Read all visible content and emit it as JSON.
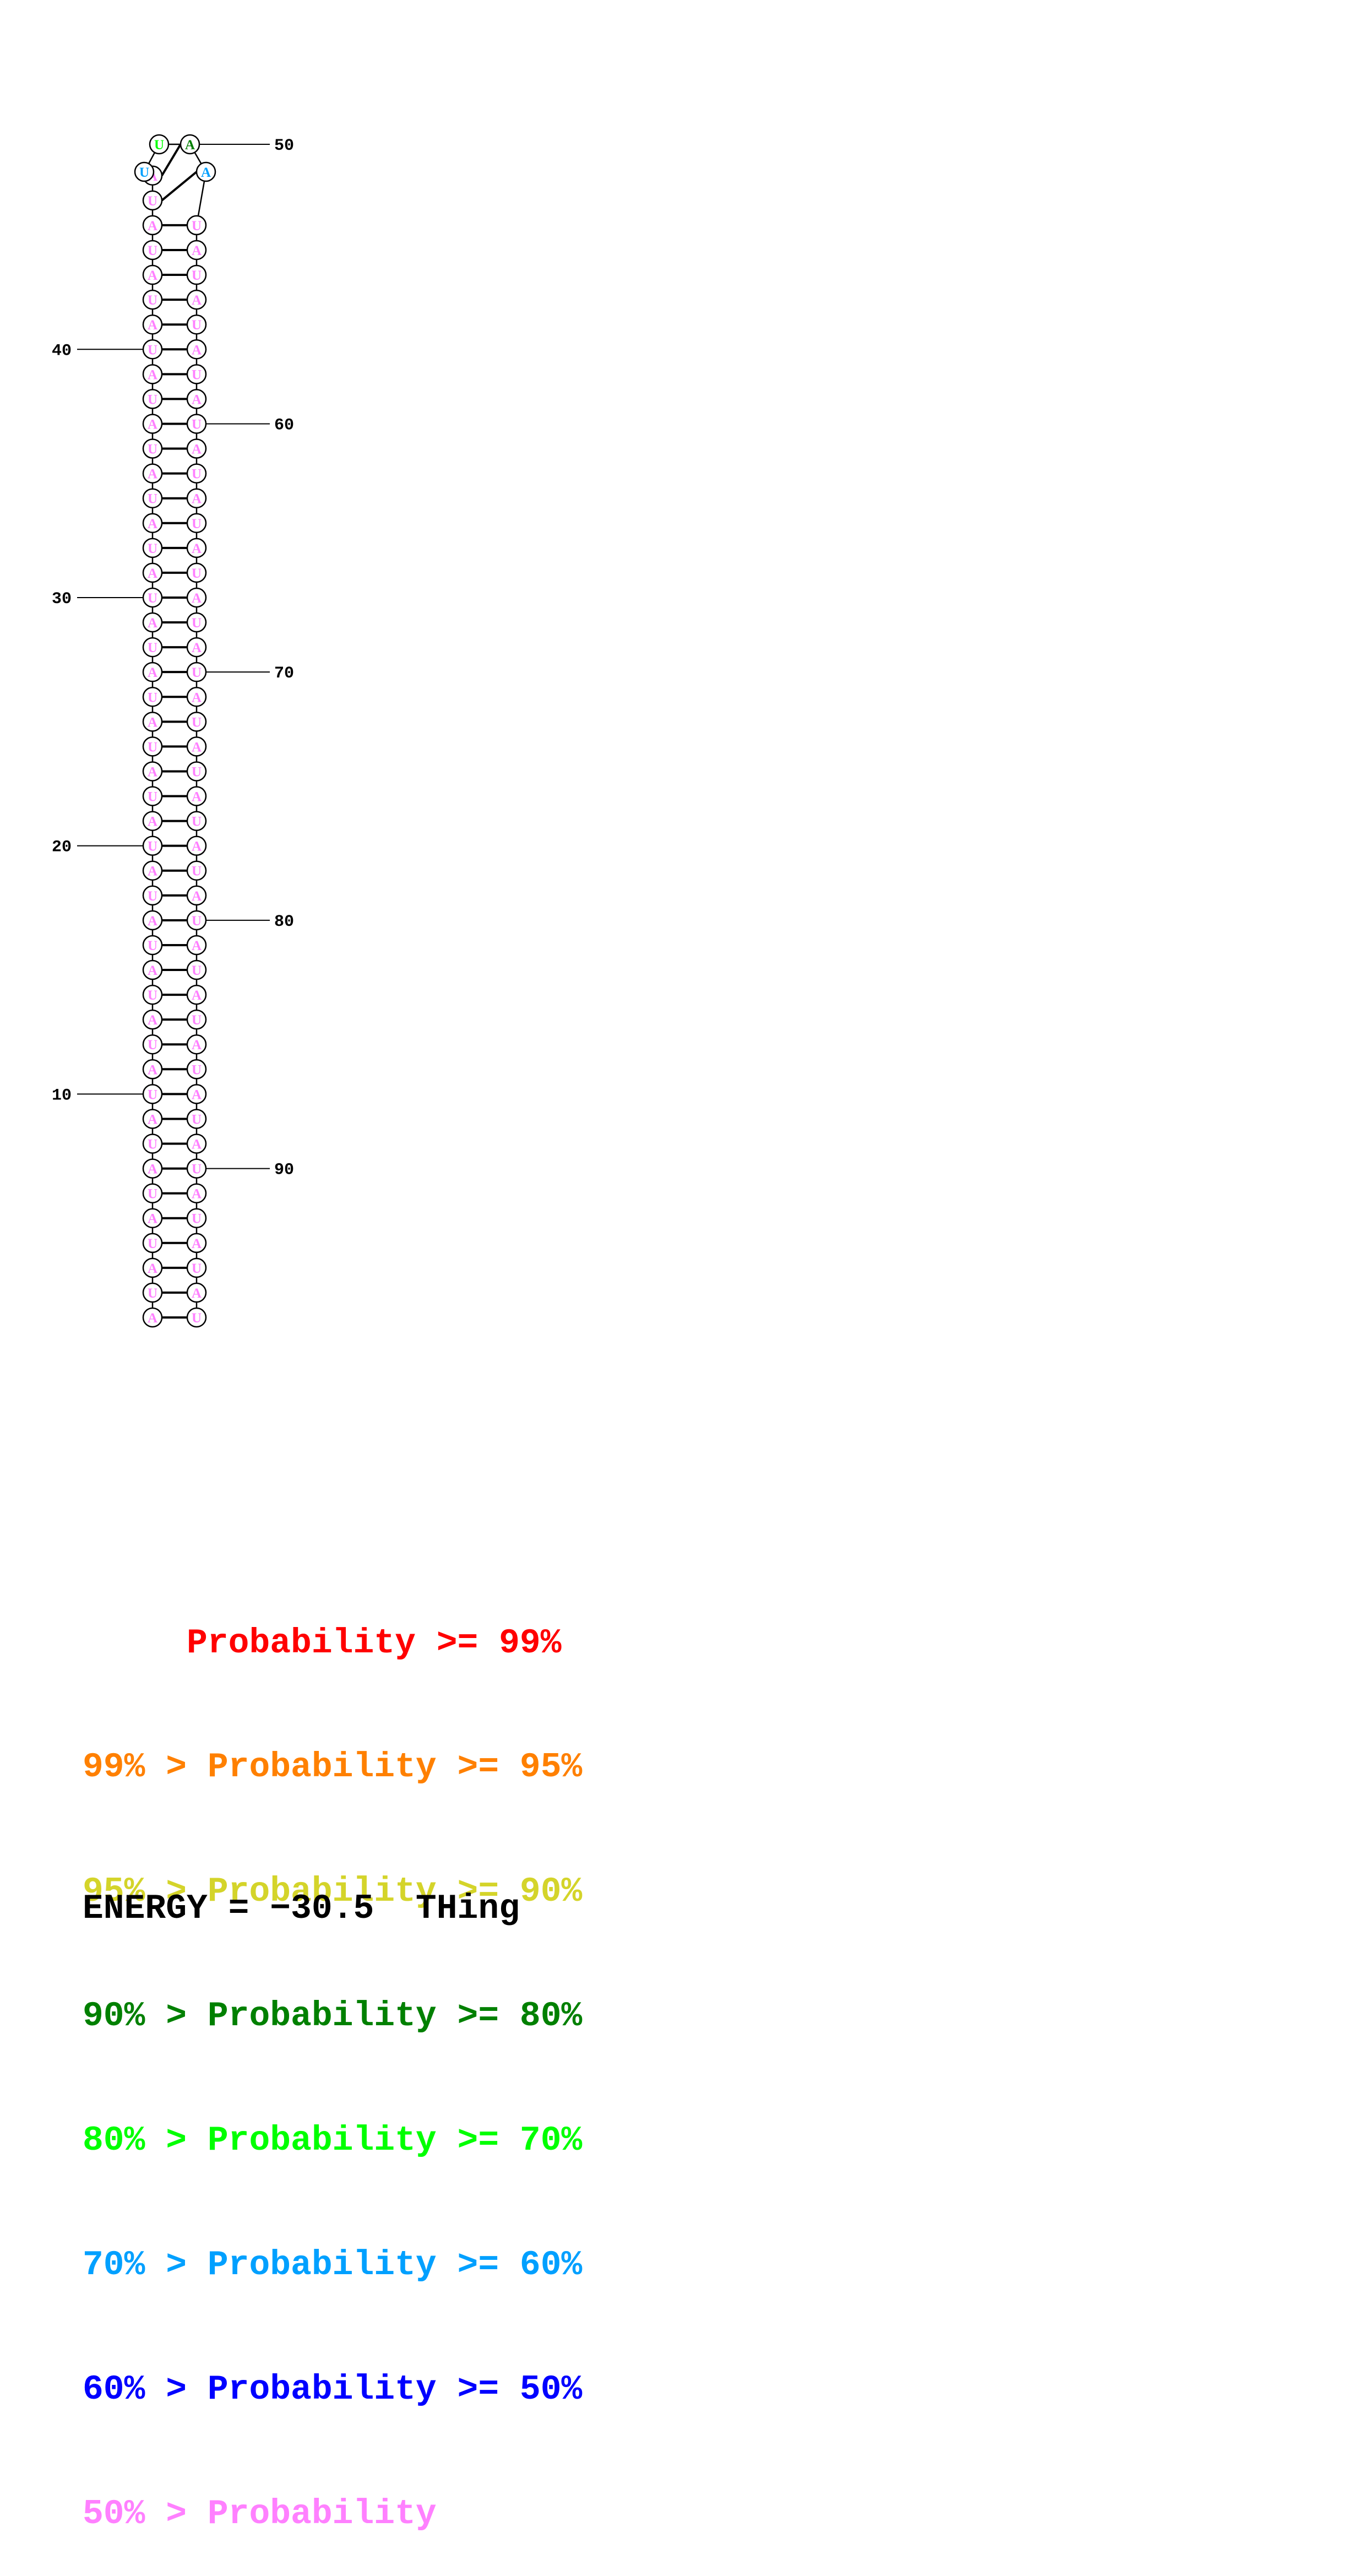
{
  "structure": {
    "sequence": "AUAUAUAUAUAUAUAUAUAUAUAUAUAUAUAUAUAUAUAUAUAUAUAUUAAUAUAUAUAUAUAUAUAUAUAUAUAUAUAUAUAUAUAUAUAUAUAU",
    "paired_stem_length": 47,
    "hairpin_loop": [
      {
        "position": 48,
        "base": "A",
        "probability_class": "70-60"
      },
      {
        "position": 49,
        "base": "U",
        "probability_class": "80-70"
      },
      {
        "position": 50,
        "base": "A",
        "probability_class": "90-80"
      },
      {
        "position": 51,
        "base": "U",
        "probability_class": "70-60"
      }
    ],
    "stem_probability_class": "<50",
    "position_labels": [
      "10",
      "20",
      "30",
      "40",
      "50",
      "60",
      "70",
      "80",
      "90"
    ]
  },
  "colors": {
    ">=99": "#ff0000",
    "99-95": "#ff8000",
    "95-90": "#d4d42a",
    "90-80": "#008000",
    "80-70": "#00ff00",
    "70-60": "#00a0ff",
    "60-50": "#0000ff",
    "<50": "#ff80ff",
    "backbone": "#000000"
  },
  "legend": [
    {
      "text": "     Probability >= 99%",
      "class": ">=99"
    },
    {
      "text": "99% > Probability >= 95%",
      "class": "99-95"
    },
    {
      "text": "95% > Probability >= 90%",
      "class": "95-90"
    },
    {
      "text": "90% > Probability >= 80%",
      "class": "90-80"
    },
    {
      "text": "80% > Probability >= 70%",
      "class": "80-70"
    },
    {
      "text": "70% > Probability >= 60%",
      "class": "70-60"
    },
    {
      "text": "60% > Probability >= 50%",
      "class": "60-50"
    },
    {
      "text": "50% > Probability",
      "class": "<50"
    }
  ],
  "energy": {
    "text": "ENERGY = −30.5  THing"
  }
}
